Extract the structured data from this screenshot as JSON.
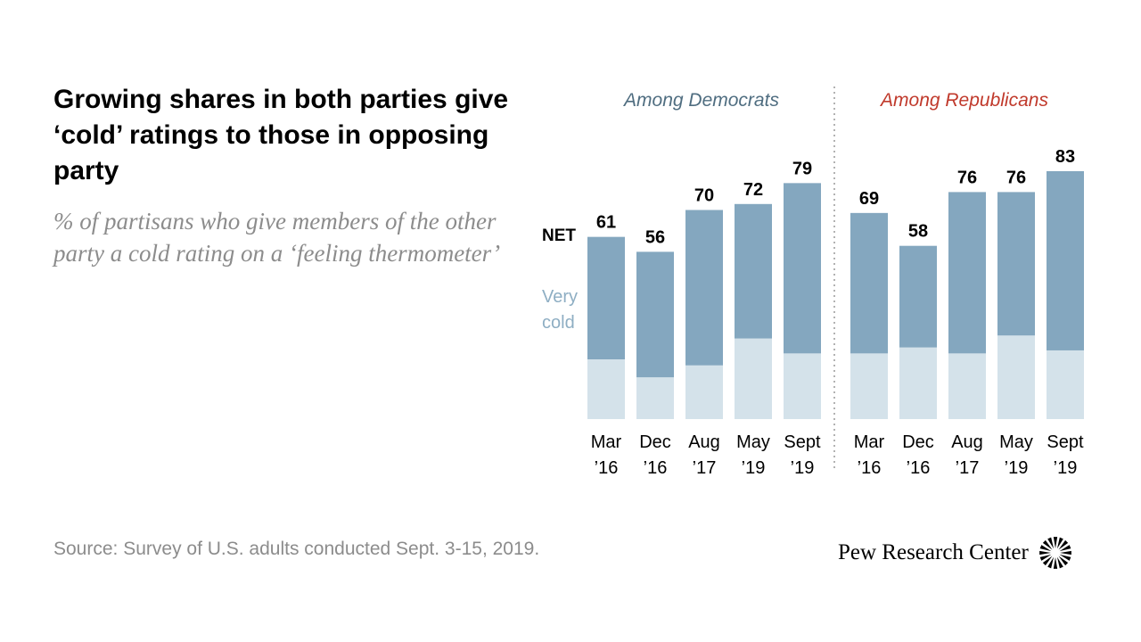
{
  "title": "Growing shares in both parties give ‘cold’ ratings to those in opposing party",
  "subtitle": "% of partisans who give members of the other party a cold rating on a ‘feeling thermometer’",
  "source": "Source: Survey of U.S. adults conducted Sept. 3-15, 2019.",
  "logo": {
    "text": "Pew Research Center",
    "icon": "pew-sunburst-icon"
  },
  "labels": {
    "net": "NET",
    "very_cold_line1": "Very",
    "very_cold_line2": "cold"
  },
  "colors": {
    "net_bar": "#84a7bf",
    "very_cold_bar": "#d4e2ea",
    "democrats_header": "#4f6d80",
    "republicans_header": "#c0392b",
    "very_cold_label": "#8eaec3",
    "divider": "#999999"
  },
  "chart_data": [
    {
      "type": "bar",
      "title": "Among Democrats",
      "categories": [
        [
          "Mar",
          "’16"
        ],
        [
          "Dec",
          "’16"
        ],
        [
          "Aug",
          "’17"
        ],
        [
          "May",
          "’19"
        ],
        [
          "Sept",
          "’19"
        ]
      ],
      "series": [
        {
          "name": "NET",
          "values": [
            61,
            56,
            70,
            72,
            79
          ]
        },
        {
          "name": "Very cold",
          "values": [
            20,
            14,
            18,
            27,
            22
          ]
        }
      ],
      "ylim": [
        0,
        100
      ],
      "grid": false
    },
    {
      "type": "bar",
      "title": "Among Republicans",
      "categories": [
        [
          "Mar",
          "’16"
        ],
        [
          "Dec",
          "’16"
        ],
        [
          "Aug",
          "’17"
        ],
        [
          "May",
          "’19"
        ],
        [
          "Sept",
          "’19"
        ]
      ],
      "series": [
        {
          "name": "NET",
          "values": [
            69,
            58,
            76,
            76,
            83
          ]
        },
        {
          "name": "Very cold",
          "values": [
            22,
            24,
            22,
            28,
            23
          ]
        }
      ],
      "ylim": [
        0,
        100
      ],
      "grid": false
    }
  ]
}
